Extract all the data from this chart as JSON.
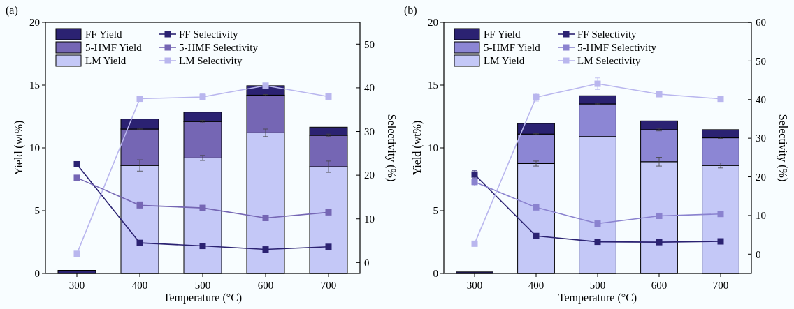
{
  "chart_data": [
    {
      "type": "bar",
      "title": "(a)",
      "xlabel": "Temperature (°C)",
      "ylabel": "Yield (wt%)",
      "y2label": "Selectivity (%)",
      "stacked": true,
      "legend": "top left",
      "grid": false,
      "marker": "square",
      "line_style": "solid",
      "categories": [
        "300",
        "400",
        "500",
        "600",
        "700"
      ],
      "ylim": [
        0,
        20
      ],
      "yticks": [
        0,
        5,
        10,
        15,
        20
      ],
      "y2lim": [
        -2.5,
        55
      ],
      "y2ticks": [
        0,
        10,
        20,
        30,
        40,
        50
      ],
      "series": [
        {
          "name": "LM Yield",
          "color": "#c4c8f7",
          "values": [
            0,
            8.6,
            9.2,
            11.2,
            8.5
          ],
          "errors": [
            null,
            0.45,
            0.2,
            0.3,
            0.45
          ]
        },
        {
          "name": "5-HMF Yield",
          "color": "#7566b4",
          "values": [
            0,
            2.9,
            2.9,
            3.0,
            2.5
          ],
          "errors": [
            null,
            0.05,
            0.1,
            0.05,
            0.1
          ]
        },
        {
          "name": "FF Yield",
          "color": "#2b2272",
          "values": [
            0.25,
            0.8,
            0.75,
            0.75,
            0.65
          ]
        },
        {
          "name": "FF Selectivity",
          "type": "line",
          "axis": "y2",
          "color": "#2b2272",
          "values": [
            22.5,
            4.5,
            3.8,
            3.0,
            3.6
          ]
        },
        {
          "name": "5-HMF Selectivity",
          "type": "line",
          "axis": "y2",
          "color": "#7566b4",
          "values": [
            19.4,
            13.1,
            12.5,
            10.2,
            11.5
          ],
          "errors": [
            null,
            0.8,
            null,
            null,
            null
          ]
        },
        {
          "name": "LM Selectivity",
          "type": "line",
          "axis": "y2",
          "color": "#b9b6ee",
          "values": [
            2.0,
            37.5,
            37.9,
            40.5,
            38.0
          ],
          "errors": [
            null,
            null,
            0.7,
            null,
            0.7
          ]
        }
      ]
    },
    {
      "type": "bar",
      "title": "(b)",
      "xlabel": "Temperature (°C)",
      "ylabel": "Yield (wt%)",
      "y2label": "Selectivity (%)",
      "stacked": true,
      "legend": "top left",
      "grid": false,
      "marker": "square",
      "line_style": "solid",
      "categories": [
        "300",
        "400",
        "500",
        "600",
        "700"
      ],
      "ylim": [
        0,
        20
      ],
      "yticks": [
        0,
        5,
        10,
        15,
        20
      ],
      "y2lim": [
        -5,
        60
      ],
      "y2ticks": [
        0,
        10,
        20,
        30,
        40,
        50,
        60
      ],
      "series": [
        {
          "name": "LM Yield",
          "color": "#c4c8f7",
          "values": [
            0,
            8.75,
            10.9,
            8.9,
            8.6
          ],
          "errors": [
            null,
            0.2,
            null,
            0.35,
            0.2
          ]
        },
        {
          "name": "5-HMF Yield",
          "color": "#8c86d4",
          "values": [
            0,
            2.35,
            2.6,
            2.55,
            2.2
          ],
          "errors": [
            null,
            0.05,
            0.05,
            0.1,
            0.05
          ]
        },
        {
          "name": "FF Yield",
          "color": "#2b2272",
          "values": [
            0.12,
            0.85,
            0.65,
            0.7,
            0.65
          ]
        },
        {
          "name": "FF Selectivity",
          "type": "line",
          "axis": "y2",
          "color": "#2b2272",
          "values": [
            20.6,
            4.7,
            3.2,
            3.1,
            3.3
          ],
          "errors": [
            1.0,
            null,
            null,
            null,
            null
          ]
        },
        {
          "name": "5-HMF Selectivity",
          "type": "line",
          "axis": "y2",
          "color": "#8a82cf",
          "values": [
            18.7,
            12.1,
            7.9,
            9.9,
            10.4
          ],
          "errors": [
            1.0,
            null,
            null,
            null,
            null
          ]
        },
        {
          "name": "LM Selectivity",
          "type": "line",
          "axis": "y2",
          "color": "#b9b6ee",
          "values": [
            2.7,
            40.6,
            44.1,
            41.4,
            40.2
          ],
          "errors": [
            null,
            1.0,
            1.5,
            null,
            null
          ]
        }
      ]
    }
  ]
}
